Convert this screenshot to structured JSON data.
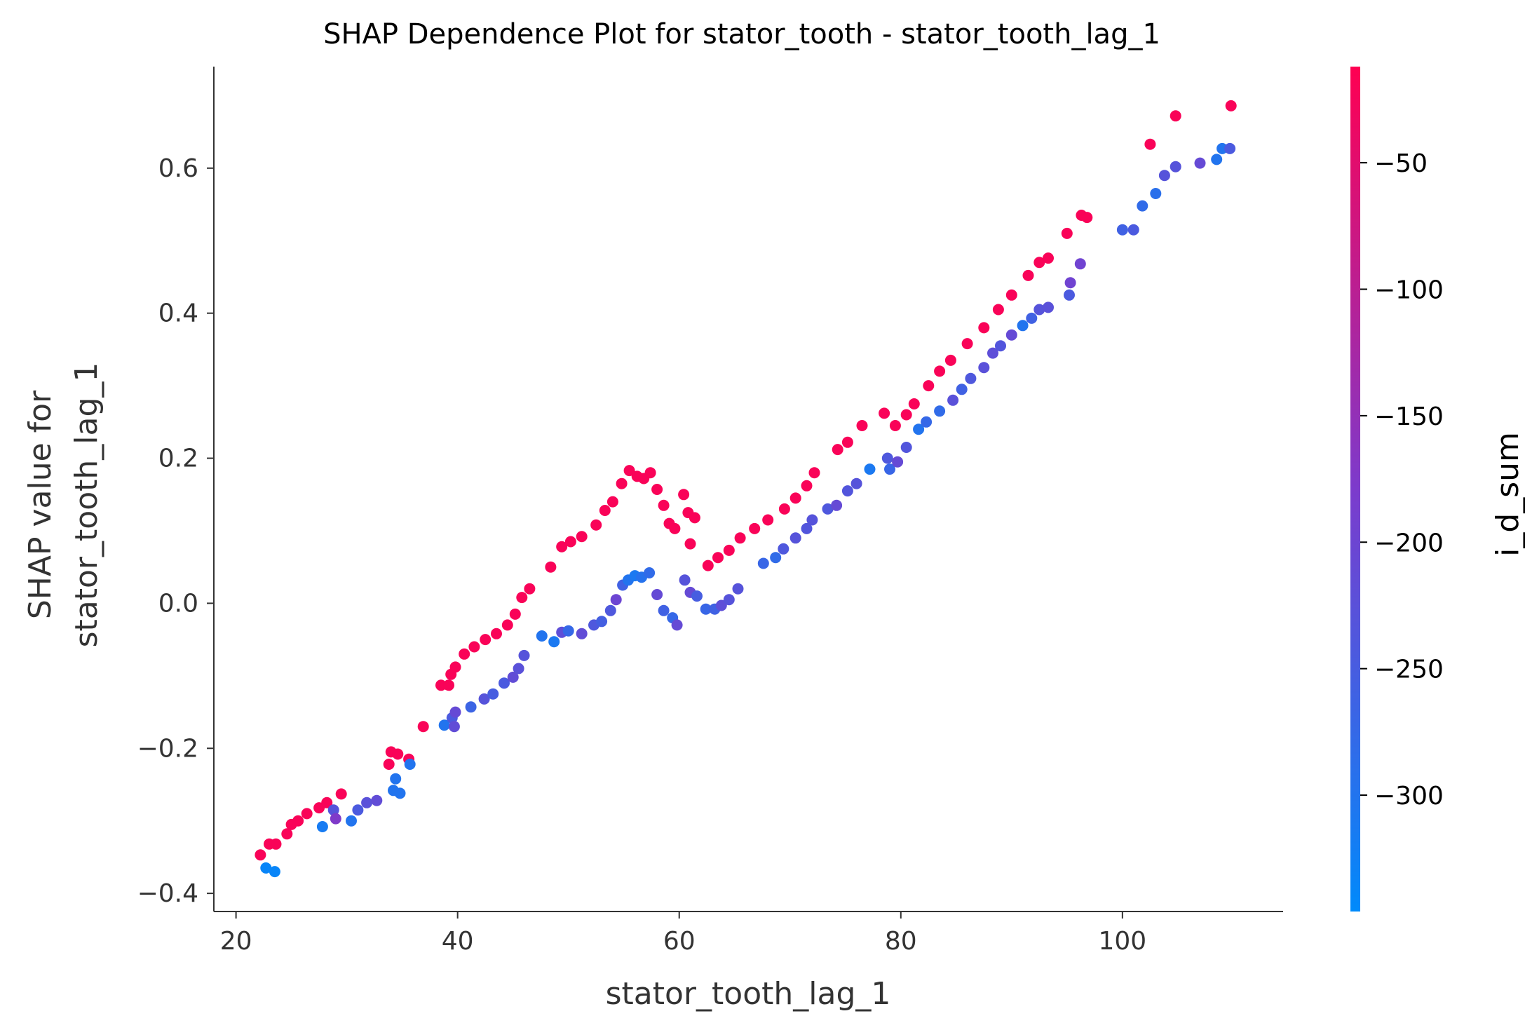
{
  "chart_data": {
    "type": "scatter",
    "title": "SHAP Dependence Plot for stator_tooth - stator_tooth_lag_1",
    "xlabel": "stator_tooth_lag_1",
    "ylabel_lines": [
      "SHAP value for",
      "stator_tooth_lag_1"
    ],
    "xlim": [
      18,
      114.5
    ],
    "ylim": [
      -0.425,
      0.74
    ],
    "xticks": [
      20,
      40,
      60,
      80,
      100
    ],
    "xtick_labels": [
      "20",
      "40",
      "60",
      "80",
      "100"
    ],
    "yticks": [
      -0.4,
      -0.2,
      0.0,
      0.2,
      0.4,
      0.6
    ],
    "ytick_labels": [
      "−0.4",
      "−0.2",
      "0.0",
      "0.2",
      "0.4",
      "0.6"
    ],
    "colorbar": {
      "label": "i_d_sum",
      "range": [
        -346,
        -12
      ],
      "ticks": [
        -50,
        -100,
        -150,
        -200,
        -250,
        -300
      ],
      "tick_labels": [
        "−50",
        "−100",
        "−150",
        "−200",
        "−250",
        "−300"
      ],
      "colormap_low": "#008afb",
      "colormap_mid": "#7c3bcc",
      "colormap_high": "#ff0052"
    },
    "grid": false,
    "series": [
      {
        "points": [
          [
            22.2,
            -0.347,
            -20
          ],
          [
            23.0,
            -0.332,
            -20
          ],
          [
            23.6,
            -0.332,
            -20
          ],
          [
            24.6,
            -0.318,
            -20
          ],
          [
            25.0,
            -0.305,
            -20
          ],
          [
            25.6,
            -0.3,
            -20
          ],
          [
            26.4,
            -0.29,
            -20
          ],
          [
            27.5,
            -0.282,
            -20
          ],
          [
            28.2,
            -0.275,
            -20
          ],
          [
            29.5,
            -0.263,
            -20
          ],
          [
            33.8,
            -0.222,
            -20
          ],
          [
            34.0,
            -0.205,
            -20
          ],
          [
            34.6,
            -0.208,
            -20
          ],
          [
            35.6,
            -0.215,
            -20
          ],
          [
            36.9,
            -0.17,
            -20
          ],
          [
            38.5,
            -0.113,
            -20
          ],
          [
            39.2,
            -0.113,
            -20
          ],
          [
            39.4,
            -0.098,
            -20
          ],
          [
            39.8,
            -0.088,
            -20
          ],
          [
            40.6,
            -0.07,
            -20
          ],
          [
            41.5,
            -0.06,
            -20
          ],
          [
            42.5,
            -0.05,
            -20
          ],
          [
            43.5,
            -0.042,
            -20
          ],
          [
            44.5,
            -0.03,
            -20
          ],
          [
            45.2,
            -0.015,
            -20
          ],
          [
            45.8,
            0.008,
            -20
          ],
          [
            46.5,
            0.02,
            -20
          ],
          [
            48.4,
            0.05,
            -20
          ],
          [
            49.4,
            0.078,
            -20
          ],
          [
            50.2,
            0.085,
            -20
          ],
          [
            51.2,
            0.092,
            -20
          ],
          [
            52.5,
            0.108,
            -20
          ],
          [
            53.3,
            0.128,
            -20
          ],
          [
            54.0,
            0.14,
            -20
          ],
          [
            54.8,
            0.165,
            -20
          ],
          [
            55.5,
            0.183,
            -20
          ],
          [
            56.2,
            0.175,
            -20
          ],
          [
            56.8,
            0.172,
            -20
          ],
          [
            57.4,
            0.18,
            -20
          ],
          [
            58.0,
            0.157,
            -20
          ],
          [
            58.6,
            0.135,
            -20
          ],
          [
            59.1,
            0.11,
            -20
          ],
          [
            59.6,
            0.103,
            -20
          ],
          [
            60.4,
            0.15,
            -20
          ],
          [
            60.8,
            0.125,
            -20
          ],
          [
            61.4,
            0.118,
            -20
          ],
          [
            61.0,
            0.082,
            -20
          ],
          [
            62.6,
            0.052,
            -20
          ],
          [
            63.5,
            0.063,
            -20
          ],
          [
            64.5,
            0.073,
            -20
          ],
          [
            65.5,
            0.09,
            -20
          ],
          [
            66.8,
            0.103,
            -20
          ],
          [
            68.0,
            0.115,
            -20
          ],
          [
            69.5,
            0.13,
            -20
          ],
          [
            70.5,
            0.145,
            -20
          ],
          [
            71.5,
            0.162,
            -20
          ],
          [
            72.2,
            0.18,
            -20
          ],
          [
            74.3,
            0.212,
            -20
          ],
          [
            75.2,
            0.222,
            -20
          ],
          [
            76.5,
            0.245,
            -20
          ],
          [
            78.5,
            0.262,
            -20
          ],
          [
            79.5,
            0.245,
            -20
          ],
          [
            80.5,
            0.26,
            -20
          ],
          [
            81.2,
            0.275,
            -20
          ],
          [
            82.5,
            0.3,
            -20
          ],
          [
            83.5,
            0.32,
            -20
          ],
          [
            84.5,
            0.335,
            -20
          ],
          [
            86.0,
            0.358,
            -20
          ],
          [
            87.5,
            0.38,
            -20
          ],
          [
            88.8,
            0.405,
            -20
          ],
          [
            90.0,
            0.425,
            -20
          ],
          [
            91.5,
            0.452,
            -20
          ],
          [
            92.5,
            0.47,
            -20
          ],
          [
            93.3,
            0.476,
            -20
          ],
          [
            95.0,
            0.51,
            -20
          ],
          [
            96.3,
            0.535,
            -20
          ],
          [
            96.8,
            0.532,
            -20
          ],
          [
            102.5,
            0.633,
            -20
          ],
          [
            104.8,
            0.672,
            -20
          ],
          [
            109.8,
            0.686,
            -20
          ],
          [
            22.7,
            -0.365,
            -335
          ],
          [
            23.5,
            -0.37,
            -335
          ],
          [
            27.8,
            -0.308,
            -315
          ],
          [
            28.8,
            -0.285,
            -230
          ],
          [
            29.0,
            -0.297,
            -175
          ],
          [
            30.4,
            -0.3,
            -300
          ],
          [
            31.0,
            -0.285,
            -245
          ],
          [
            31.8,
            -0.275,
            -225
          ],
          [
            32.7,
            -0.272,
            -215
          ],
          [
            34.2,
            -0.258,
            -300
          ],
          [
            34.4,
            -0.242,
            -300
          ],
          [
            34.8,
            -0.262,
            -300
          ],
          [
            35.7,
            -0.222,
            -300
          ],
          [
            38.8,
            -0.168,
            -300
          ],
          [
            39.5,
            -0.158,
            -245
          ],
          [
            39.8,
            -0.15,
            -210
          ],
          [
            39.7,
            -0.17,
            -215
          ],
          [
            41.2,
            -0.143,
            -265
          ],
          [
            42.4,
            -0.132,
            -230
          ],
          [
            43.2,
            -0.125,
            -250
          ],
          [
            44.2,
            -0.11,
            -245
          ],
          [
            45.0,
            -0.102,
            -215
          ],
          [
            45.5,
            -0.09,
            -225
          ],
          [
            46.0,
            -0.072,
            -230
          ],
          [
            47.6,
            -0.045,
            -300
          ],
          [
            48.7,
            -0.053,
            -310
          ],
          [
            49.4,
            -0.04,
            -220
          ],
          [
            50.0,
            -0.038,
            -275
          ],
          [
            51.2,
            -0.042,
            -215
          ],
          [
            52.3,
            -0.03,
            -240
          ],
          [
            53.0,
            -0.025,
            -255
          ],
          [
            53.8,
            -0.01,
            -240
          ],
          [
            54.3,
            0.005,
            -200
          ],
          [
            54.9,
            0.025,
            -260
          ],
          [
            55.4,
            0.032,
            -300
          ],
          [
            56.0,
            0.038,
            -310
          ],
          [
            56.6,
            0.036,
            -295
          ],
          [
            57.3,
            0.042,
            -280
          ],
          [
            58.0,
            0.012,
            -210
          ],
          [
            58.6,
            -0.01,
            -260
          ],
          [
            59.4,
            -0.02,
            -275
          ],
          [
            59.8,
            -0.03,
            -210
          ],
          [
            60.5,
            0.032,
            -230
          ],
          [
            61.0,
            0.015,
            -210
          ],
          [
            61.6,
            0.01,
            -250
          ],
          [
            62.4,
            -0.008,
            -270
          ],
          [
            63.2,
            -0.008,
            -260
          ],
          [
            63.8,
            -0.003,
            -220
          ],
          [
            64.5,
            0.005,
            -230
          ],
          [
            65.3,
            0.02,
            -230
          ],
          [
            67.6,
            0.055,
            -270
          ],
          [
            68.7,
            0.063,
            -280
          ],
          [
            69.4,
            0.075,
            -240
          ],
          [
            70.5,
            0.09,
            -230
          ],
          [
            71.5,
            0.103,
            -235
          ],
          [
            72.0,
            0.115,
            -230
          ],
          [
            73.4,
            0.13,
            -240
          ],
          [
            74.2,
            0.135,
            -210
          ],
          [
            75.2,
            0.155,
            -235
          ],
          [
            76.0,
            0.165,
            -230
          ],
          [
            77.2,
            0.185,
            -310
          ],
          [
            78.8,
            0.2,
            -240
          ],
          [
            79.0,
            0.185,
            -270
          ],
          [
            79.7,
            0.195,
            -210
          ],
          [
            80.5,
            0.215,
            -235
          ],
          [
            81.6,
            0.24,
            -300
          ],
          [
            82.3,
            0.25,
            -275
          ],
          [
            83.5,
            0.265,
            -280
          ],
          [
            84.7,
            0.28,
            -225
          ],
          [
            85.5,
            0.295,
            -260
          ],
          [
            86.3,
            0.31,
            -240
          ],
          [
            87.5,
            0.325,
            -225
          ],
          [
            88.3,
            0.345,
            -220
          ],
          [
            89.0,
            0.355,
            -235
          ],
          [
            90.0,
            0.37,
            -210
          ],
          [
            91.0,
            0.383,
            -300
          ],
          [
            91.8,
            0.393,
            -260
          ],
          [
            92.5,
            0.405,
            -230
          ],
          [
            93.3,
            0.408,
            -225
          ],
          [
            95.2,
            0.425,
            -245
          ],
          [
            95.3,
            0.442,
            -195
          ],
          [
            96.2,
            0.468,
            -195
          ],
          [
            100.0,
            0.515,
            -260
          ],
          [
            101.0,
            0.515,
            -245
          ],
          [
            101.8,
            0.548,
            -280
          ],
          [
            103.0,
            0.565,
            -290
          ],
          [
            103.8,
            0.59,
            -230
          ],
          [
            104.8,
            0.602,
            -230
          ],
          [
            107.0,
            0.607,
            -210
          ],
          [
            108.5,
            0.612,
            -300
          ],
          [
            109.0,
            0.627,
            -300
          ],
          [
            109.7,
            0.627,
            -245
          ]
        ]
      }
    ]
  }
}
